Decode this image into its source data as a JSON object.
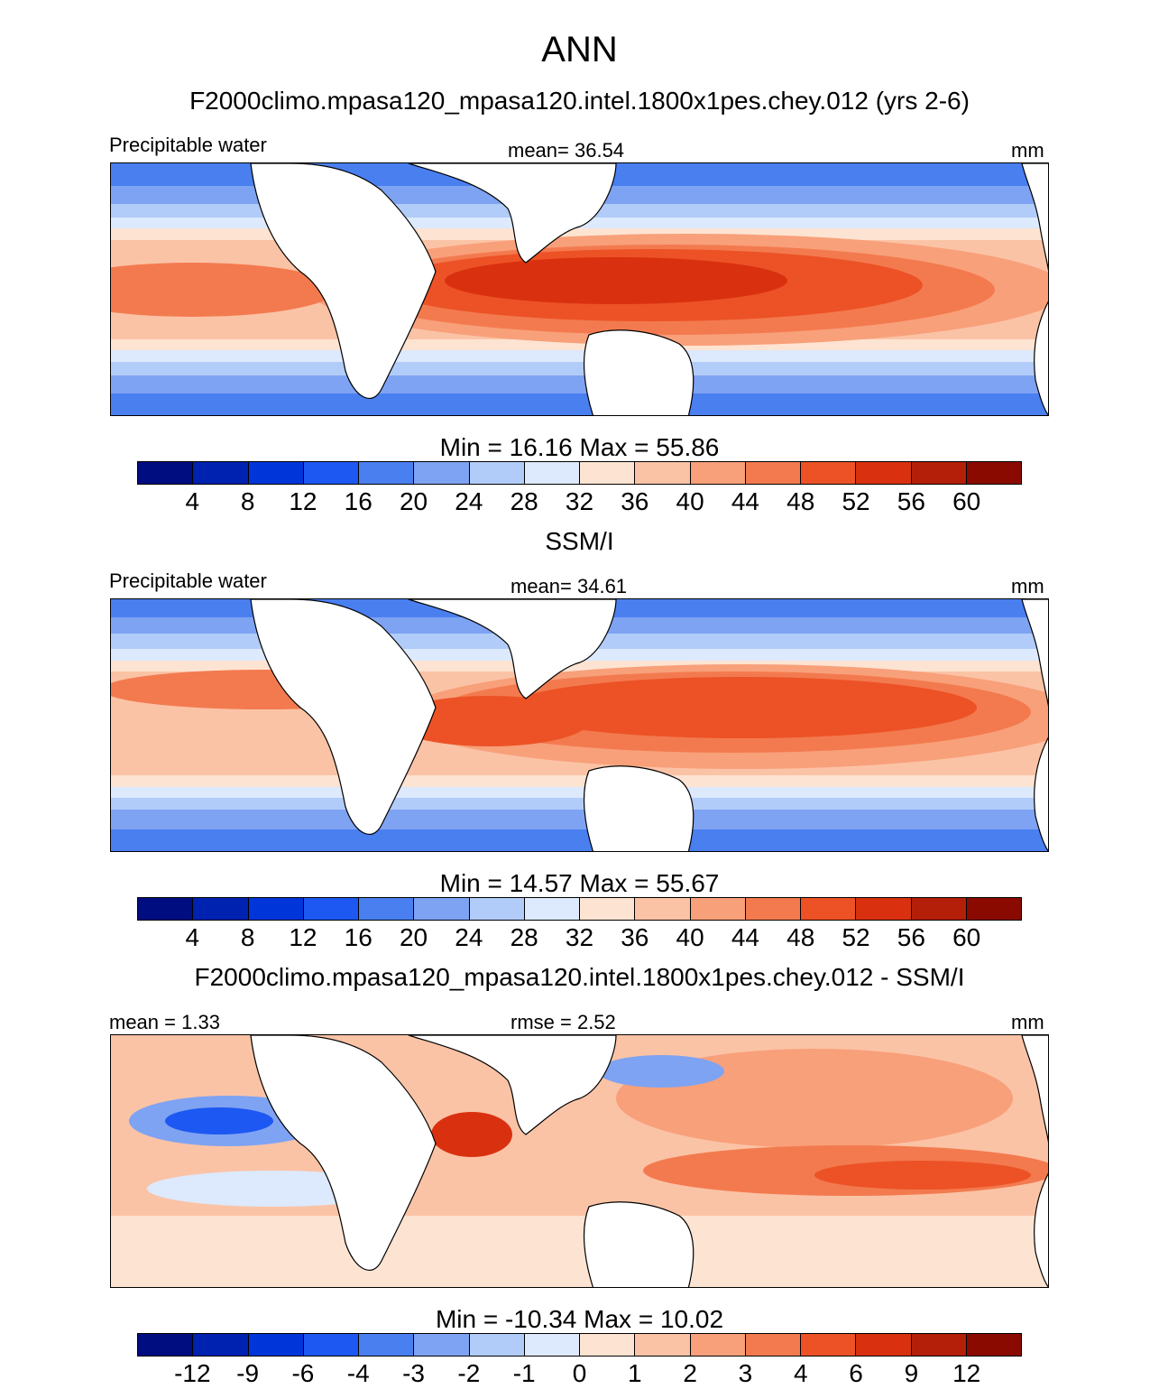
{
  "figure": {
    "title": "ANN"
  },
  "panels": [
    {
      "heading": "F2000climo.mpasa120_mpasa120.intel.1800x1pes.chey.012 (yrs 2-6)",
      "left_label": "Precipitable water",
      "center_label": "mean=  36.54",
      "right_label": "mm",
      "minmax": "Min =  16.16 Max =  55.86",
      "colorbar": "absolute"
    },
    {
      "heading": "SSM/I",
      "left_label": "Precipitable water",
      "center_label": "mean=  34.61",
      "right_label": "mm",
      "minmax": "Min =  14.57 Max =  55.67",
      "colorbar": "absolute"
    },
    {
      "heading": "F2000climo.mpasa120_mpasa120.intel.1800x1pes.chey.012 - SSM/I",
      "left_label": "mean =   1.33",
      "center_label": "rmse =   2.52",
      "right_label": "mm",
      "minmax": "Min = -10.34 Max =  10.02",
      "colorbar": "difference"
    }
  ],
  "colors": {
    "levels": [
      "#000d80",
      "#0022b0",
      "#0036d9",
      "#1e58f2",
      "#4a7ff0",
      "#7ea3f2",
      "#b2ccf9",
      "#dde9fc",
      "#fde3d2",
      "#fbc3a6",
      "#f8a07a",
      "#f37a4f",
      "#ec5226",
      "#d93110",
      "#b31f08",
      "#8a0a00"
    ],
    "land": "#ffffff",
    "coast": "#000000"
  },
  "chart_data": [
    {
      "type": "heatmap",
      "title": "F2000climo.mpasa120_mpasa120.intel.1800x1pes.chey.012 (yrs 2-6)",
      "variable": "Precipitable water",
      "units": "mm",
      "mean": 36.54,
      "min": 16.16,
      "max": 55.86,
      "colorbar_ticks": [
        4,
        8,
        12,
        16,
        20,
        24,
        28,
        32,
        36,
        40,
        44,
        48,
        52,
        56,
        60
      ],
      "colorbar_tick_labels": [
        "4",
        "8",
        "12",
        "16",
        "20",
        "24",
        "28",
        "32",
        "36",
        "40",
        "44",
        "48",
        "52",
        "56",
        "60"
      ]
    },
    {
      "type": "heatmap",
      "title": "SSM/I",
      "variable": "Precipitable water",
      "units": "mm",
      "mean": 34.61,
      "min": 14.57,
      "max": 55.67,
      "colorbar_ticks": [
        4,
        8,
        12,
        16,
        20,
        24,
        28,
        32,
        36,
        40,
        44,
        48,
        52,
        56,
        60
      ],
      "colorbar_tick_labels": [
        "4",
        "8",
        "12",
        "16",
        "20",
        "24",
        "28",
        "32",
        "36",
        "40",
        "44",
        "48",
        "52",
        "56",
        "60"
      ]
    },
    {
      "type": "heatmap",
      "title": "F2000climo.mpasa120_mpasa120.intel.1800x1pes.chey.012 - SSM/I",
      "units": "mm",
      "mean": 1.33,
      "rmse": 2.52,
      "min": -10.34,
      "max": 10.02,
      "colorbar_ticks": [
        -12,
        -9,
        -6,
        -4,
        -3,
        -2,
        -1,
        0,
        1,
        2,
        3,
        4,
        6,
        9,
        12
      ],
      "colorbar_tick_labels": [
        "-12",
        "-9",
        "-6",
        "-4",
        "-3",
        "-2",
        "-1",
        "0",
        "1",
        "2",
        "3",
        "4",
        "6",
        "9",
        "12"
      ]
    }
  ]
}
